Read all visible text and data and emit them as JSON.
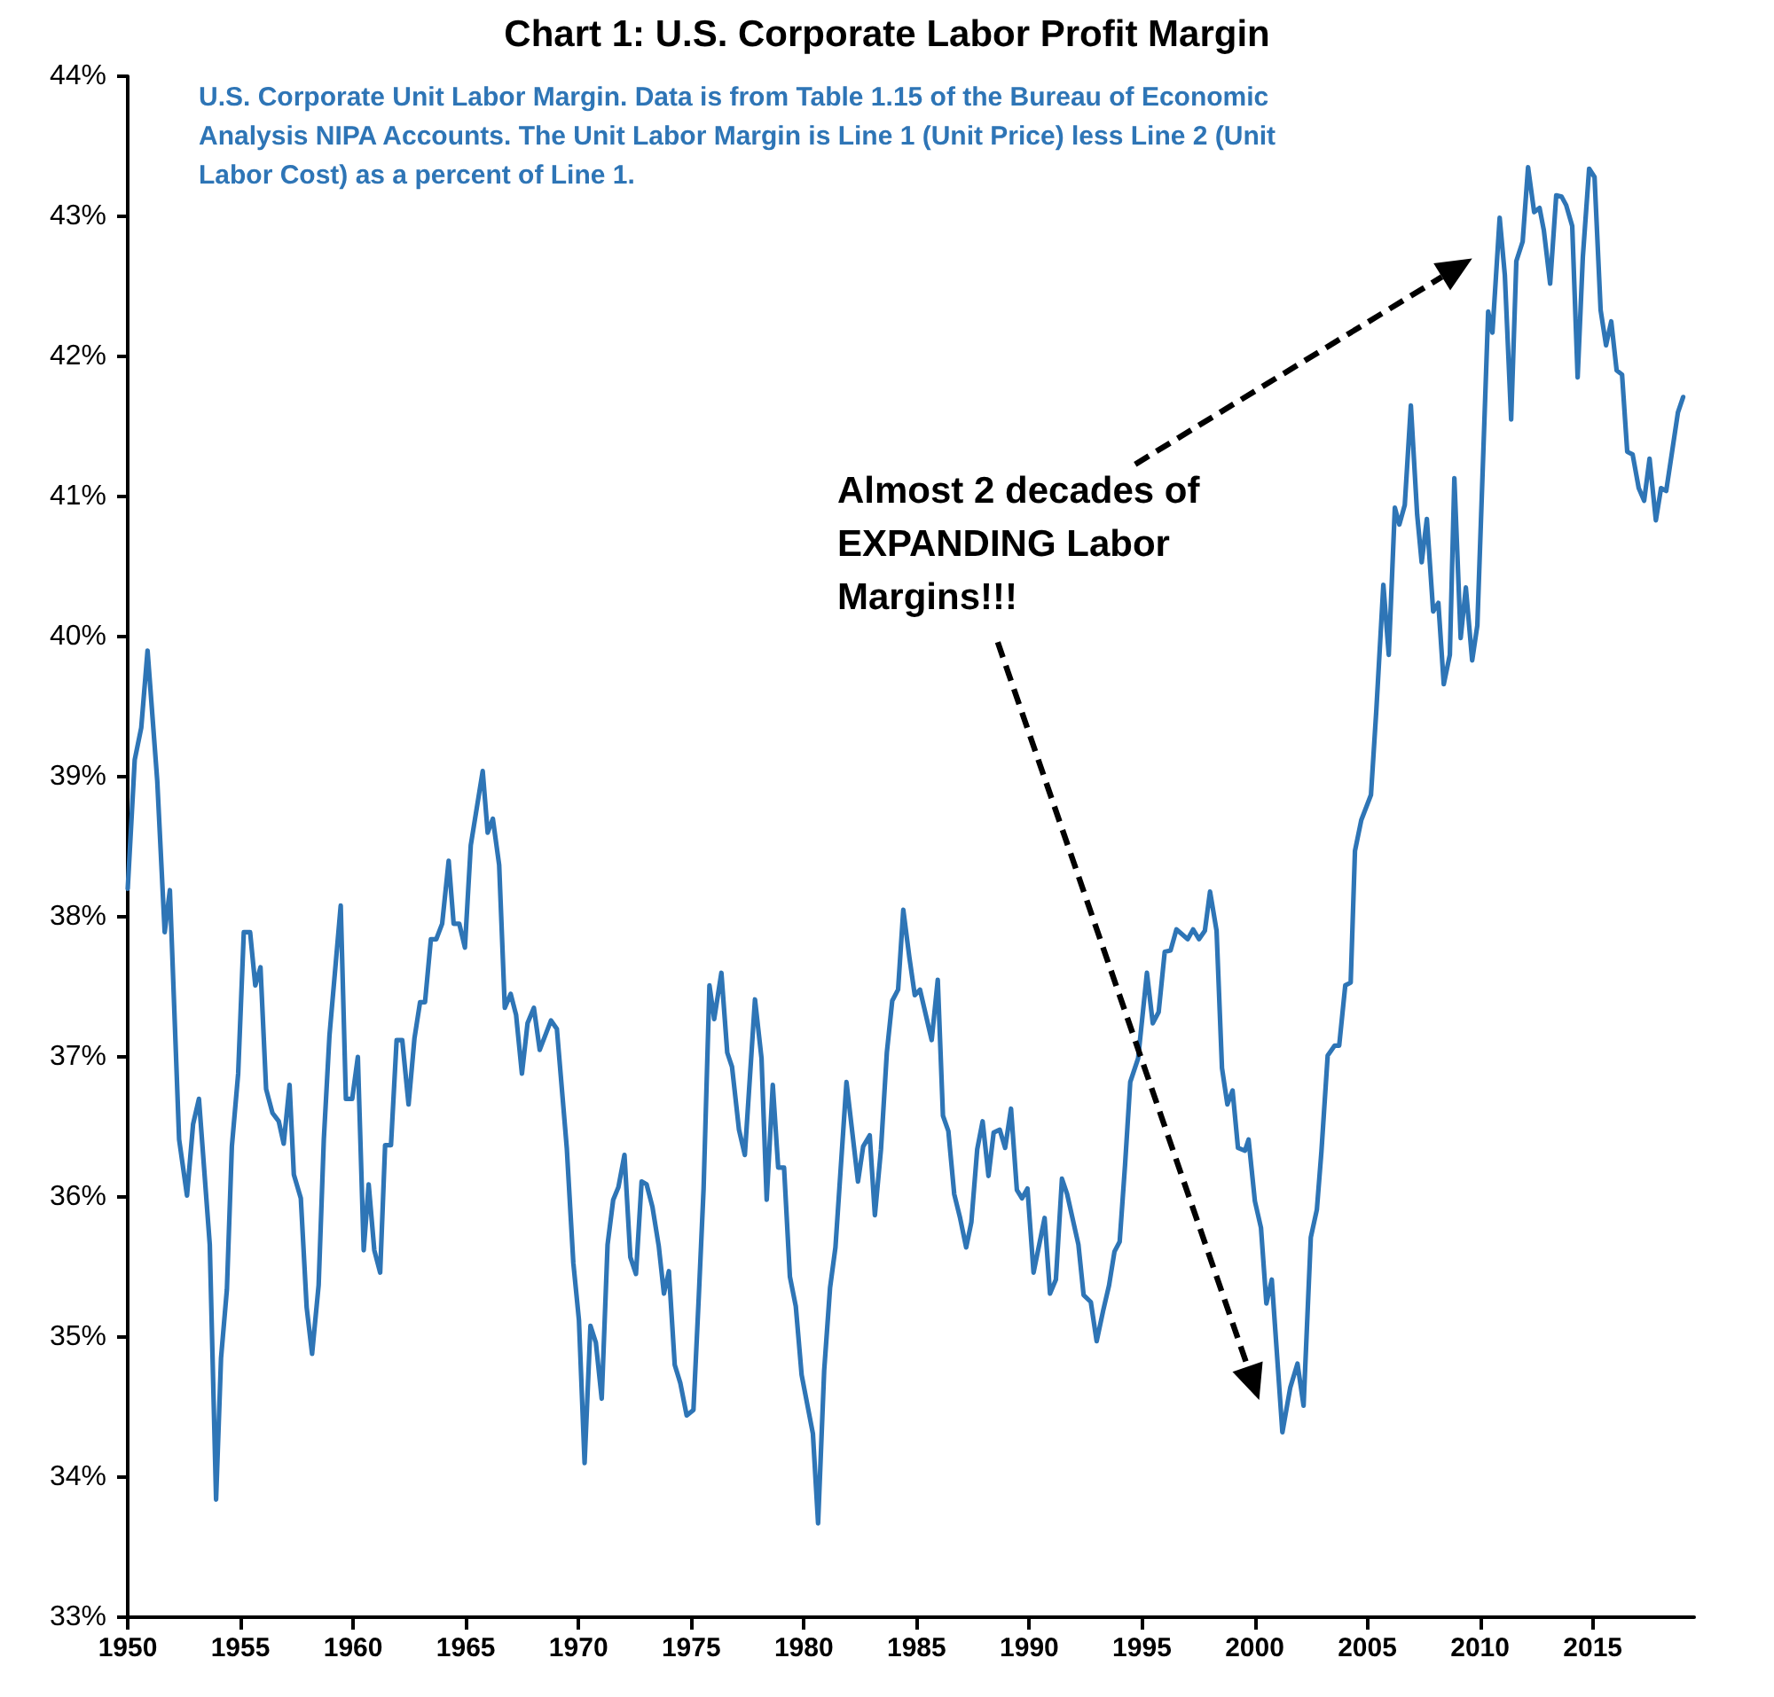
{
  "chart_data": {
    "type": "line",
    "title": "Chart 1: U.S. Corporate Labor Profit Margin",
    "annotations": [
      "U.S. Corporate Unit Labor Margin. Data is from Table 1.15 of the Bureau of Economic Analysis NIPA Accounts. The Unit Labor Margin is Line 1 (Unit Price) less Line 2 (Unit Labor Cost) as a percent of Line 1.",
      "Almost 2 decades of EXPANDING Labor Margins!!!"
    ],
    "xlim": [
      1950,
      2019.5
    ],
    "xticks": [
      1950,
      1955,
      1960,
      1965,
      1970,
      1975,
      1980,
      1985,
      1990,
      1995,
      2000,
      2005,
      2010,
      2015
    ],
    "ylim": [
      33,
      44
    ],
    "yticks": [
      {
        "value": 33,
        "label": "33%"
      },
      {
        "value": 34,
        "label": "34%"
      },
      {
        "value": 35,
        "label": "35%"
      },
      {
        "value": 36,
        "label": "36%"
      },
      {
        "value": 37,
        "label": "37%"
      },
      {
        "value": 38,
        "label": "38%"
      },
      {
        "value": 39,
        "label": "39%"
      },
      {
        "value": 40,
        "label": "40%"
      },
      {
        "value": 41,
        "label": "41%"
      },
      {
        "value": 42,
        "label": "42%"
      },
      {
        "value": 43,
        "label": "43%"
      },
      {
        "value": 44,
        "label": "44%"
      }
    ],
    "grid": false,
    "legend": false,
    "marker": "none",
    "line_style": "solid",
    "x": [
      1950.0,
      1950.31,
      1950.6,
      1950.88,
      1951.31,
      1951.64,
      1951.87,
      1952.28,
      1952.63,
      1952.9,
      1953.16,
      1953.64,
      1953.92,
      1954.14,
      1954.4,
      1954.62,
      1954.9,
      1955.15,
      1955.43,
      1955.66,
      1955.89,
      1956.14,
      1956.42,
      1956.7,
      1956.92,
      1957.18,
      1957.37,
      1957.68,
      1957.94,
      1958.18,
      1958.47,
      1958.7,
      1958.95,
      1959.45,
      1959.68,
      1959.96,
      1960.21,
      1960.47,
      1960.69,
      1960.94,
      1961.2,
      1961.42,
      1961.68,
      1961.93,
      1962.18,
      1962.46,
      1962.72,
      1962.97,
      1963.19,
      1963.45,
      1963.69,
      1963.95,
      1964.24,
      1964.46,
      1964.71,
      1964.96,
      1965.22,
      1965.75,
      1965.97,
      1966.2,
      1966.48,
      1966.73,
      1966.99,
      1967.23,
      1967.49,
      1967.74,
      1968.02,
      1968.28,
      1968.78,
      1969.04,
      1969.48,
      1969.77,
      1970.02,
      1970.27,
      1970.53,
      1970.77,
      1971.03,
      1971.29,
      1971.54,
      1971.77,
      1972.04,
      1972.3,
      1972.55,
      1972.8,
      1973.02,
      1973.28,
      1973.56,
      1973.79,
      1974.01,
      1974.27,
      1974.52,
      1974.8,
      1975.1,
      1975.34,
      1975.55,
      1975.81,
      1976.02,
      1976.34,
      1976.6,
      1976.81,
      1977.12,
      1977.38,
      1977.83,
      1978.12,
      1978.35,
      1978.62,
      1978.86,
      1979.12,
      1979.38,
      1979.64,
      1979.9,
      1980.4,
      1980.63,
      1980.9,
      1981.16,
      1981.4,
      1981.89,
      1982.4,
      1982.63,
      1982.92,
      1983.15,
      1983.42,
      1983.68,
      1983.92,
      1984.18,
      1984.41,
      1984.68,
      1984.92,
      1985.15,
      1985.67,
      1985.94,
      1986.17,
      1986.41,
      1986.67,
      1986.93,
      1987.2,
      1987.43,
      1987.69,
      1987.93,
      1988.19,
      1988.42,
      1988.69,
      1988.93,
      1989.19,
      1989.45,
      1989.68,
      1989.92,
      1990.19,
      1990.68,
      1990.92,
      1991.18,
      1991.45,
      1991.68,
      1992.18,
      1992.41,
      1992.73,
      1992.99,
      1993.28,
      1993.54,
      1993.78,
      1994.01,
      1994.25,
      1994.48,
      1994.83,
      1995.22,
      1995.48,
      1995.74,
      1996.01,
      1996.27,
      1996.53,
      1997.03,
      1997.27,
      1997.53,
      1997.79,
      1998.02,
      1998.31,
      1998.55,
      1998.79,
      1999.02,
      1999.26,
      1999.57,
      1999.73,
      2000.01,
      2000.28,
      2000.52,
      2000.76,
      2001.23,
      2001.58,
      2001.9,
      2002.17,
      2002.49,
      2002.76,
      2002.96,
      2003.24,
      2003.55,
      2003.75,
      2004.02,
      2004.26,
      2004.45,
      2004.73,
      2005.16,
      2005.4,
      2005.71,
      2005.95,
      2006.22,
      2006.42,
      2006.66,
      2006.93,
      2007.21,
      2007.41,
      2007.64,
      2007.92,
      2008.15,
      2008.39,
      2008.66,
      2008.86,
      2009.14,
      2009.37,
      2009.65,
      2009.88,
      2010.36,
      2010.55,
      2010.87,
      2011.1,
      2011.38,
      2011.61,
      2011.89,
      2012.13,
      2012.4,
      2012.64,
      2012.83,
      2013.11,
      2013.38,
      2013.62,
      2013.82,
      2014.09,
      2014.33,
      2014.56,
      2014.84,
      2015.08,
      2015.35,
      2015.59,
      2015.82,
      2016.06,
      2016.3,
      2016.53,
      2016.77,
      2017.04,
      2017.28,
      2017.52,
      2017.8,
      2018.03,
      2018.26,
      2018.78,
      2019.01
    ],
    "series": [
      {
        "color": "#2e75b6",
        "values": [
          38.2,
          39.12,
          39.35,
          39.9,
          38.97,
          37.89,
          38.19,
          36.41,
          36.01,
          36.52,
          36.7,
          35.66,
          33.84,
          34.85,
          35.34,
          36.36,
          36.88,
          37.89,
          37.89,
          37.51,
          37.64,
          36.77,
          36.6,
          36.54,
          36.38,
          36.8,
          36.16,
          35.99,
          35.21,
          34.88,
          35.37,
          36.41,
          37.15,
          38.08,
          36.7,
          36.7,
          37.0,
          35.62,
          36.09,
          35.62,
          35.46,
          36.37,
          36.37,
          37.12,
          37.12,
          36.66,
          37.13,
          37.39,
          37.39,
          37.84,
          37.84,
          37.95,
          38.4,
          37.95,
          37.95,
          37.78,
          38.51,
          39.04,
          38.6,
          38.7,
          38.37,
          37.35,
          37.45,
          37.3,
          36.88,
          37.24,
          37.35,
          37.05,
          37.26,
          37.2,
          36.35,
          35.53,
          35.12,
          34.1,
          35.08,
          34.96,
          34.56,
          35.66,
          35.98,
          36.07,
          36.3,
          35.57,
          35.45,
          36.11,
          36.09,
          35.93,
          35.65,
          35.31,
          35.47,
          34.8,
          34.67,
          34.44,
          34.48,
          35.3,
          36.06,
          37.51,
          37.27,
          37.6,
          37.03,
          36.93,
          36.48,
          36.3,
          37.41,
          36.99,
          35.98,
          36.8,
          36.21,
          36.21,
          35.43,
          35.22,
          34.73,
          34.31,
          33.67,
          34.76,
          35.35,
          35.64,
          36.82,
          36.11,
          36.36,
          36.44,
          35.87,
          36.34,
          37.03,
          37.4,
          37.48,
          38.05,
          37.71,
          37.44,
          37.48,
          37.12,
          37.55,
          36.58,
          36.47,
          36.02,
          35.85,
          35.64,
          35.82,
          36.34,
          36.54,
          36.15,
          36.46,
          36.48,
          36.35,
          36.63,
          36.05,
          35.99,
          36.06,
          35.46,
          35.85,
          35.31,
          35.41,
          36.13,
          36.02,
          35.66,
          35.3,
          35.25,
          34.97,
          35.19,
          35.37,
          35.61,
          35.68,
          36.23,
          36.82,
          36.99,
          37.6,
          37.24,
          37.32,
          37.75,
          37.76,
          37.91,
          37.84,
          37.91,
          37.84,
          37.9,
          38.18,
          37.9,
          36.92,
          36.66,
          36.76,
          36.35,
          36.33,
          36.41,
          35.97,
          35.78,
          35.24,
          35.41,
          34.32,
          34.64,
          34.81,
          34.51,
          35.71,
          35.91,
          36.32,
          37.01,
          37.08,
          37.08,
          37.51,
          37.53,
          38.47,
          38.69,
          38.87,
          39.48,
          40.37,
          39.87,
          40.92,
          40.8,
          40.94,
          41.65,
          40.87,
          40.53,
          40.84,
          40.18,
          40.24,
          39.66,
          39.87,
          41.13,
          39.99,
          40.35,
          39.83,
          40.08,
          42.32,
          42.17,
          42.99,
          42.58,
          41.55,
          42.68,
          42.82,
          43.35,
          43.03,
          43.06,
          42.9,
          42.52,
          43.15,
          43.14,
          43.08,
          42.93,
          41.85,
          42.71,
          43.34,
          43.28,
          42.33,
          42.08,
          42.25,
          41.9,
          41.87,
          41.32,
          41.3,
          41.06,
          40.97,
          41.27,
          40.83,
          41.06,
          41.04,
          41.6,
          41.71
        ]
      }
    ]
  }
}
